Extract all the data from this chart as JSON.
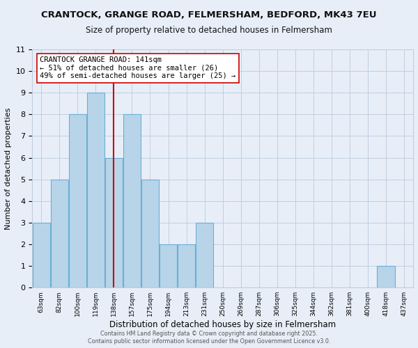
{
  "title": "CRANTOCK, GRANGE ROAD, FELMERSHAM, BEDFORD, MK43 7EU",
  "subtitle": "Size of property relative to detached houses in Felmersham",
  "xlabel": "Distribution of detached houses by size in Felmersham",
  "ylabel": "Number of detached properties",
  "bins": [
    "63sqm",
    "82sqm",
    "100sqm",
    "119sqm",
    "138sqm",
    "157sqm",
    "175sqm",
    "194sqm",
    "213sqm",
    "231sqm",
    "250sqm",
    "269sqm",
    "287sqm",
    "306sqm",
    "325sqm",
    "344sqm",
    "362sqm",
    "381sqm",
    "400sqm",
    "418sqm",
    "437sqm"
  ],
  "values": [
    3,
    5,
    8,
    9,
    6,
    8,
    5,
    2,
    2,
    3,
    0,
    0,
    0,
    0,
    0,
    0,
    0,
    0,
    0,
    1,
    0
  ],
  "bar_color": "#b8d4e8",
  "bar_edge_color": "#6aafd6",
  "vline_bin_index": 4,
  "vline_color": "#cc0000",
  "annotation_text": "CRANTOCK GRANGE ROAD: 141sqm\n← 51% of detached houses are smaller (26)\n49% of semi-detached houses are larger (25) →",
  "annotation_fontsize": 7.5,
  "ylim": [
    0,
    11
  ],
  "yticks": [
    0,
    1,
    2,
    3,
    4,
    5,
    6,
    7,
    8,
    9,
    10,
    11
  ],
  "title_fontsize": 9.5,
  "subtitle_fontsize": 8.5,
  "xlabel_fontsize": 8.5,
  "ylabel_fontsize": 8,
  "footer1": "Contains HM Land Registry data © Crown copyright and database right 2025.",
  "footer2": "Contains public sector information licensed under the Open Government Licence v3.0.",
  "background_color": "#e8eef8",
  "grid_color": "#c0cfe0"
}
